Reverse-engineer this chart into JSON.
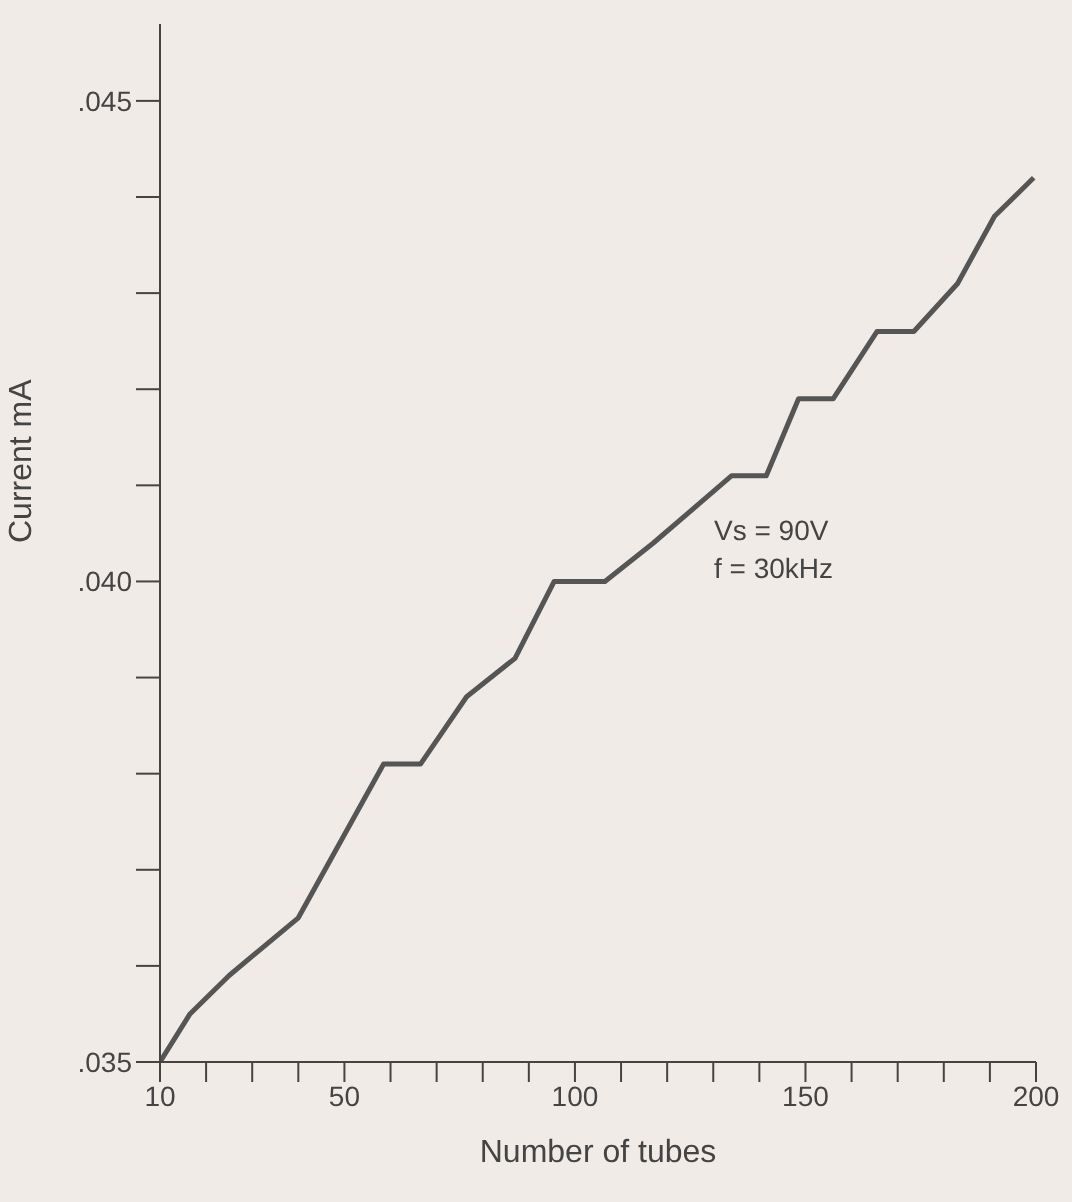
{
  "chart_data": {
    "type": "line",
    "xlabel": "Number of tubes",
    "ylabel": "Current mA",
    "annotations": [
      "Vs = 90V",
      "f = 30kHz"
    ],
    "x": [
      10,
      16.5,
      25,
      40,
      58.5,
      66.5,
      76.5,
      87,
      95.5,
      106.5,
      117,
      134,
      141.5,
      148.5,
      156,
      165.5,
      173.5,
      183,
      191,
      199.5
    ],
    "series": [
      {
        "color": "#555555",
        "values": [
          0.035,
          0.0355,
          0.0359,
          0.0365,
          0.0381,
          0.0381,
          0.0388,
          0.0392,
          0.04,
          0.04,
          0.0404,
          0.0411,
          0.0411,
          0.0419,
          0.0419,
          0.0426,
          0.0426,
          0.0431,
          0.0438,
          0.0442
        ]
      }
    ],
    "xlim": [
      10,
      200
    ],
    "xticks": [
      10,
      {
        "value": 20,
        "label": null
      },
      {
        "value": 30,
        "label": null
      },
      {
        "value": 40,
        "label": null
      },
      50,
      {
        "value": 60,
        "label": null
      },
      {
        "value": 70,
        "label": null
      },
      {
        "value": 80,
        "label": null
      },
      {
        "value": 90,
        "label": null
      },
      100,
      {
        "value": 110,
        "label": null
      },
      {
        "value": 120,
        "label": null
      },
      {
        "value": 130,
        "label": null
      },
      {
        "value": 140,
        "label": null
      },
      150,
      {
        "value": 160,
        "label": null
      },
      {
        "value": 170,
        "label": null
      },
      {
        "value": 180,
        "label": null
      },
      {
        "value": 190,
        "label": null
      },
      200
    ],
    "ylim": [
      0.035,
      0.0458
    ],
    "yticks": [
      {
        "value": 0.035,
        "label": ".035"
      },
      {
        "value": 0.036,
        "label": null
      },
      {
        "value": 0.037,
        "label": null
      },
      {
        "value": 0.038,
        "label": null
      },
      {
        "value": 0.039,
        "label": null
      },
      {
        "value": 0.04,
        "label": ".040"
      },
      {
        "value": 0.041,
        "label": null
      },
      {
        "value": 0.042,
        "label": null
      },
      {
        "value": 0.043,
        "label": null
      },
      {
        "value": 0.044,
        "label": null
      },
      {
        "value": 0.045,
        "label": ".045"
      }
    ],
    "grid": false,
    "legend": false,
    "marker": "none",
    "line_style": "solid"
  }
}
